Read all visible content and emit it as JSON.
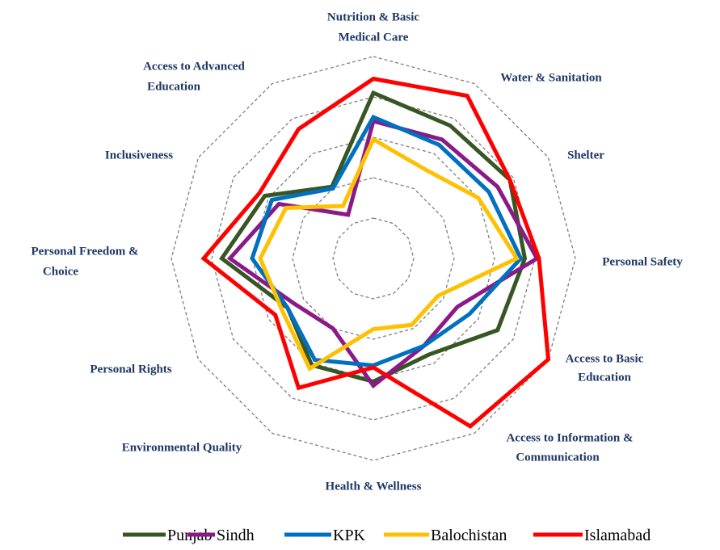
{
  "chart_data": {
    "type": "radar",
    "categories": [
      [
        "Nutrition & Basic",
        "Medical Care"
      ],
      [
        "Water & Sanitation"
      ],
      [
        "Shelter"
      ],
      [
        "Personal Safety"
      ],
      [
        "Access to Basic",
        "Education"
      ],
      [
        "Access to Information &",
        "Communication"
      ],
      [
        "Health & Wellness"
      ],
      [
        "Environmental Quality"
      ],
      [
        "Personal Rights"
      ],
      [
        "Personal Freedom &",
        "Choice"
      ],
      [
        "Inclusiveness"
      ],
      [
        "Access to Advanced",
        "Education"
      ]
    ],
    "series": [
      {
        "name": "Punjab",
        "color": "#375623",
        "values": [
          82,
          76,
          78,
          75,
          71,
          55,
          61,
          61,
          49,
          75,
          62,
          41
        ]
      },
      {
        "name": "Sindh",
        "color": "#8b1a89",
        "values": [
          68,
          68,
          71,
          81,
          48,
          50,
          63,
          40,
          45,
          71,
          54,
          25
        ]
      },
      {
        "name": "KPK",
        "color": "#0070c0",
        "values": [
          70,
          65,
          66,
          73,
          55,
          50,
          53,
          58,
          49,
          60,
          58,
          40
        ]
      },
      {
        "name": "Balochistan",
        "color": "#ffc000",
        "values": [
          59,
          51,
          60,
          71,
          37,
          38,
          35,
          63,
          52,
          56,
          50,
          30
        ]
      },
      {
        "name": "Islamabad",
        "color": "#ff0000",
        "values": [
          89,
          93,
          78,
          82,
          100,
          96,
          54,
          74,
          56,
          84,
          65,
          74
        ]
      }
    ],
    "ylim": [
      0,
      100
    ],
    "yticks": [
      20,
      40,
      60,
      80,
      100
    ],
    "grid": true,
    "legend": "bottom"
  }
}
